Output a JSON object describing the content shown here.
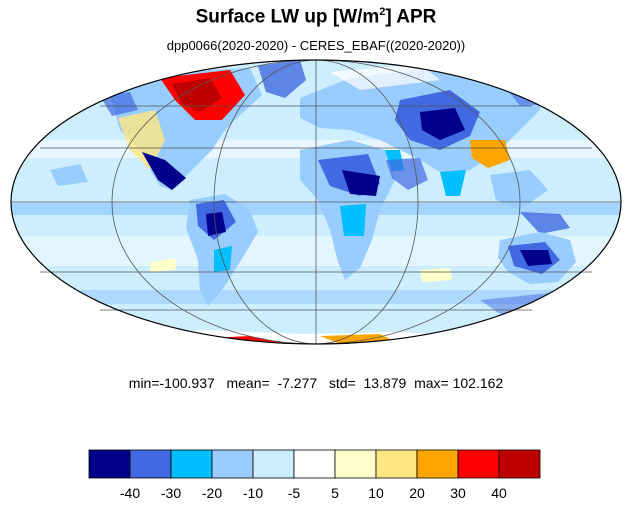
{
  "title": {
    "main": "Surface LW up [W/m",
    "sup": "2",
    "tail": "]  APR"
  },
  "subtitle": "dpp0066(2020-2020) - CERES_EBAF((2020-2020))",
  "stats": {
    "min_label": "min=",
    "min": "-100.937",
    "mean_label": "mean=",
    "mean": "-7.277",
    "std_label": "std=",
    "std": "13.879",
    "max_label": "max=",
    "max": "102.162"
  },
  "colorbar": {
    "colors": [
      "#00008b",
      "#4169e1",
      "#00bfff",
      "#99ccff",
      "#cceeff",
      "#ffffff",
      "#ffffcc",
      "#ffe680",
      "#ffa500",
      "#ff0000",
      "#c00000"
    ],
    "ticks": [
      "-40",
      "-30",
      "-20",
      "-10",
      "-5",
      "5",
      "10",
      "20",
      "30",
      "40"
    ]
  },
  "map": {
    "projection": "mollweide",
    "ocean_color": "#cceeff",
    "grid": true
  }
}
